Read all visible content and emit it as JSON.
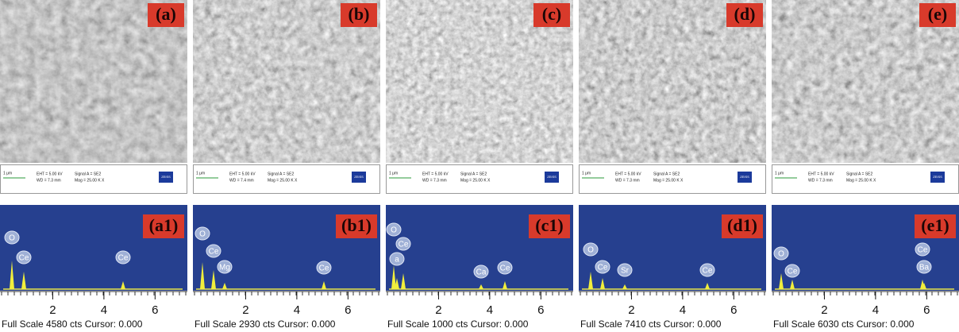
{
  "panels": [
    {
      "label": "(a)",
      "scale_bar": "1 μm",
      "eht": "EHT = 5.00 kV",
      "wd": "WD = 7.3 mm",
      "signal": "Signal A = SE2",
      "mag": "Mag = 25.00 K X",
      "logo": "ZEISS"
    },
    {
      "label": "(b)",
      "scale_bar": "1 μm",
      "eht": "EHT = 5.00 kV",
      "wd": "WD = 7.4 mm",
      "signal": "Signal A = SE2",
      "mag": "Mag = 25.00 K X",
      "logo": "ZEISS"
    },
    {
      "label": "(c)",
      "scale_bar": "1 μm",
      "eht": "EHT = 5.00 kV",
      "wd": "WD = 7.3 mm",
      "signal": "Signal A = SE2",
      "mag": "Mag = 25.00 K X",
      "logo": "ZEISS"
    },
    {
      "label": "(d)",
      "scale_bar": "1 μm",
      "eht": "EHT = 5.00 kV",
      "wd": "WD = 7.3 mm",
      "signal": "Signal A = SE2",
      "mag": "Mag = 25.00 K X",
      "logo": "ZEISS"
    },
    {
      "label": "(e)",
      "scale_bar": "1 μm",
      "eht": "EHT = 5.00 kV",
      "wd": "WD = 7.3 mm",
      "signal": "Signal A = SE2",
      "mag": "Mag = 25.00 K X",
      "logo": "ZEISS"
    }
  ],
  "spectra": [
    {
      "label": "(a1)",
      "elements": [
        "O",
        "Ce",
        "Ce"
      ],
      "xlim": [
        0,
        7.2
      ],
      "xticks": [
        2,
        4,
        6
      ],
      "footer": "Full Scale 4580 cts Cursor: 0.000"
    },
    {
      "label": "(b1)",
      "elements": [
        "O",
        "Ce",
        "Mg",
        "Ce"
      ],
      "xlim": [
        0,
        7.2
      ],
      "xticks": [
        2,
        4,
        6
      ],
      "footer": "Full Scale 2930 cts Cursor: 0.000"
    },
    {
      "label": "(c1)",
      "elements": [
        "O",
        "Ce",
        "a",
        "Ca",
        "Ce"
      ],
      "xlim": [
        0,
        7.2
      ],
      "xticks": [
        2,
        4,
        6
      ],
      "footer": "Full Scale 1000 cts Cursor: 0.000"
    },
    {
      "label": "(d1)",
      "elements": [
        "O",
        "Ce",
        "Sr",
        "Ce"
      ],
      "xlim": [
        0,
        7.2
      ],
      "xticks": [
        2,
        4,
        6
      ],
      "footer": "Full Scale 7410 cts Cursor: 0.000"
    },
    {
      "label": "(e1)",
      "elements": [
        "O",
        "Ce",
        "Ce",
        "Ba"
      ],
      "xlim": [
        0,
        7.2
      ],
      "xticks": [
        2,
        4,
        6
      ],
      "footer": "Full Scale 6030 cts Cursor: 0.000"
    }
  ]
}
